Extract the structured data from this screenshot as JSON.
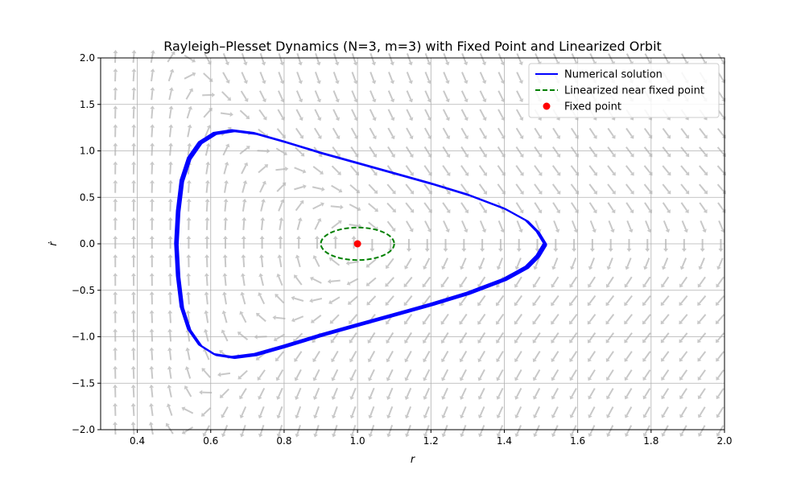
{
  "chart_data": {
    "type": "line",
    "title": "Rayleigh–Plesset Dynamics (N=3, m=3) with Fixed Point and Linearized Orbit",
    "xlabel": "r",
    "ylabel": "ṙ",
    "xlim": [
      0.3,
      2.0
    ],
    "ylim": [
      -2.0,
      2.0
    ],
    "xticks": [
      0.4,
      0.6,
      0.8,
      1.0,
      1.2,
      1.4,
      1.6,
      1.8,
      2.0
    ],
    "yticks": [
      -2.0,
      -1.5,
      -1.0,
      -0.5,
      0.0,
      0.5,
      1.0,
      1.5,
      2.0
    ],
    "grid": true,
    "legend_position": "top-right",
    "series": [
      {
        "name": "Numerical solution",
        "style": "solid",
        "color": "#0000ff",
        "points": [
          [
            1.51,
            0.0
          ],
          [
            1.49,
            0.13
          ],
          [
            1.46,
            0.25
          ],
          [
            1.4,
            0.38
          ],
          [
            1.3,
            0.53
          ],
          [
            1.2,
            0.65
          ],
          [
            1.1,
            0.76
          ],
          [
            1.0,
            0.87
          ],
          [
            0.9,
            0.98
          ],
          [
            0.8,
            1.1
          ],
          [
            0.72,
            1.19
          ],
          [
            0.66,
            1.22
          ],
          [
            0.61,
            1.19
          ],
          [
            0.57,
            1.09
          ],
          [
            0.54,
            0.92
          ],
          [
            0.52,
            0.68
          ],
          [
            0.51,
            0.35
          ],
          [
            0.505,
            0.0
          ],
          [
            0.51,
            -0.35
          ],
          [
            0.52,
            -0.68
          ],
          [
            0.54,
            -0.92
          ],
          [
            0.57,
            -1.09
          ],
          [
            0.61,
            -1.19
          ],
          [
            0.66,
            -1.22
          ],
          [
            0.72,
            -1.19
          ],
          [
            0.8,
            -1.1
          ],
          [
            0.9,
            -0.98
          ],
          [
            1.0,
            -0.87
          ],
          [
            1.1,
            -0.76
          ],
          [
            1.2,
            -0.65
          ],
          [
            1.3,
            -0.53
          ],
          [
            1.4,
            -0.38
          ],
          [
            1.46,
            -0.25
          ],
          [
            1.49,
            -0.13
          ],
          [
            1.51,
            0.0
          ]
        ]
      },
      {
        "name": "Linearized near fixed point",
        "style": "dashed",
        "color": "#008000",
        "ellipse": {
          "center": [
            1.0,
            0.0
          ],
          "rx": 0.1,
          "ry": 0.175
        }
      }
    ],
    "markers": [
      {
        "name": "Fixed point",
        "color": "#ff0000",
        "x": 1.0,
        "y": 0.0
      }
    ],
    "quiver": {
      "color": "#c8c8c8",
      "description_only": true
    }
  }
}
